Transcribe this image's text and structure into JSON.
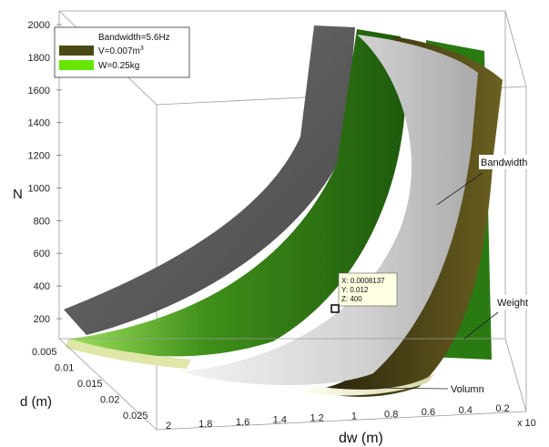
{
  "chart_data": {
    "type": "surface3d",
    "zlabel": "N",
    "xlabel": "dw (m)",
    "ylabel": "d (m)",
    "x_exponent": "x 10",
    "z_ticks": [
      "200",
      "400",
      "600",
      "800",
      "1000",
      "1200",
      "1400",
      "1600",
      "1800",
      "2000"
    ],
    "x_ticks": [
      "2",
      "1.8",
      "1.6",
      "1.4",
      "1.2",
      "1",
      "0.8",
      "0.6",
      "0.4",
      "0.2"
    ],
    "y_ticks": [
      "0.005",
      "0.01",
      "0.015",
      "0.02",
      "0.025"
    ],
    "legend": {
      "title": "Bandwidth=5.6Hz",
      "items": [
        {
          "label": "V=0.007m",
          "superscript": "3",
          "color": "#4a4a16"
        },
        {
          "label": "W=0.25kg",
          "superscript": "",
          "color": "#66e600"
        }
      ]
    },
    "series": [
      {
        "name": "Bandwidth",
        "color": "#8c8c8c"
      },
      {
        "name": "Weight",
        "color": "#2d7a10"
      },
      {
        "name": "Volumn",
        "color": "#e9e7c4"
      }
    ],
    "datatip": {
      "x": "X: 0.0008137",
      "y": "Y: 0.012",
      "z": "Z: 400"
    },
    "annotations": {
      "bandwidth": "Bandwidth",
      "weight": "Weight",
      "volumn": "Volumn"
    }
  }
}
